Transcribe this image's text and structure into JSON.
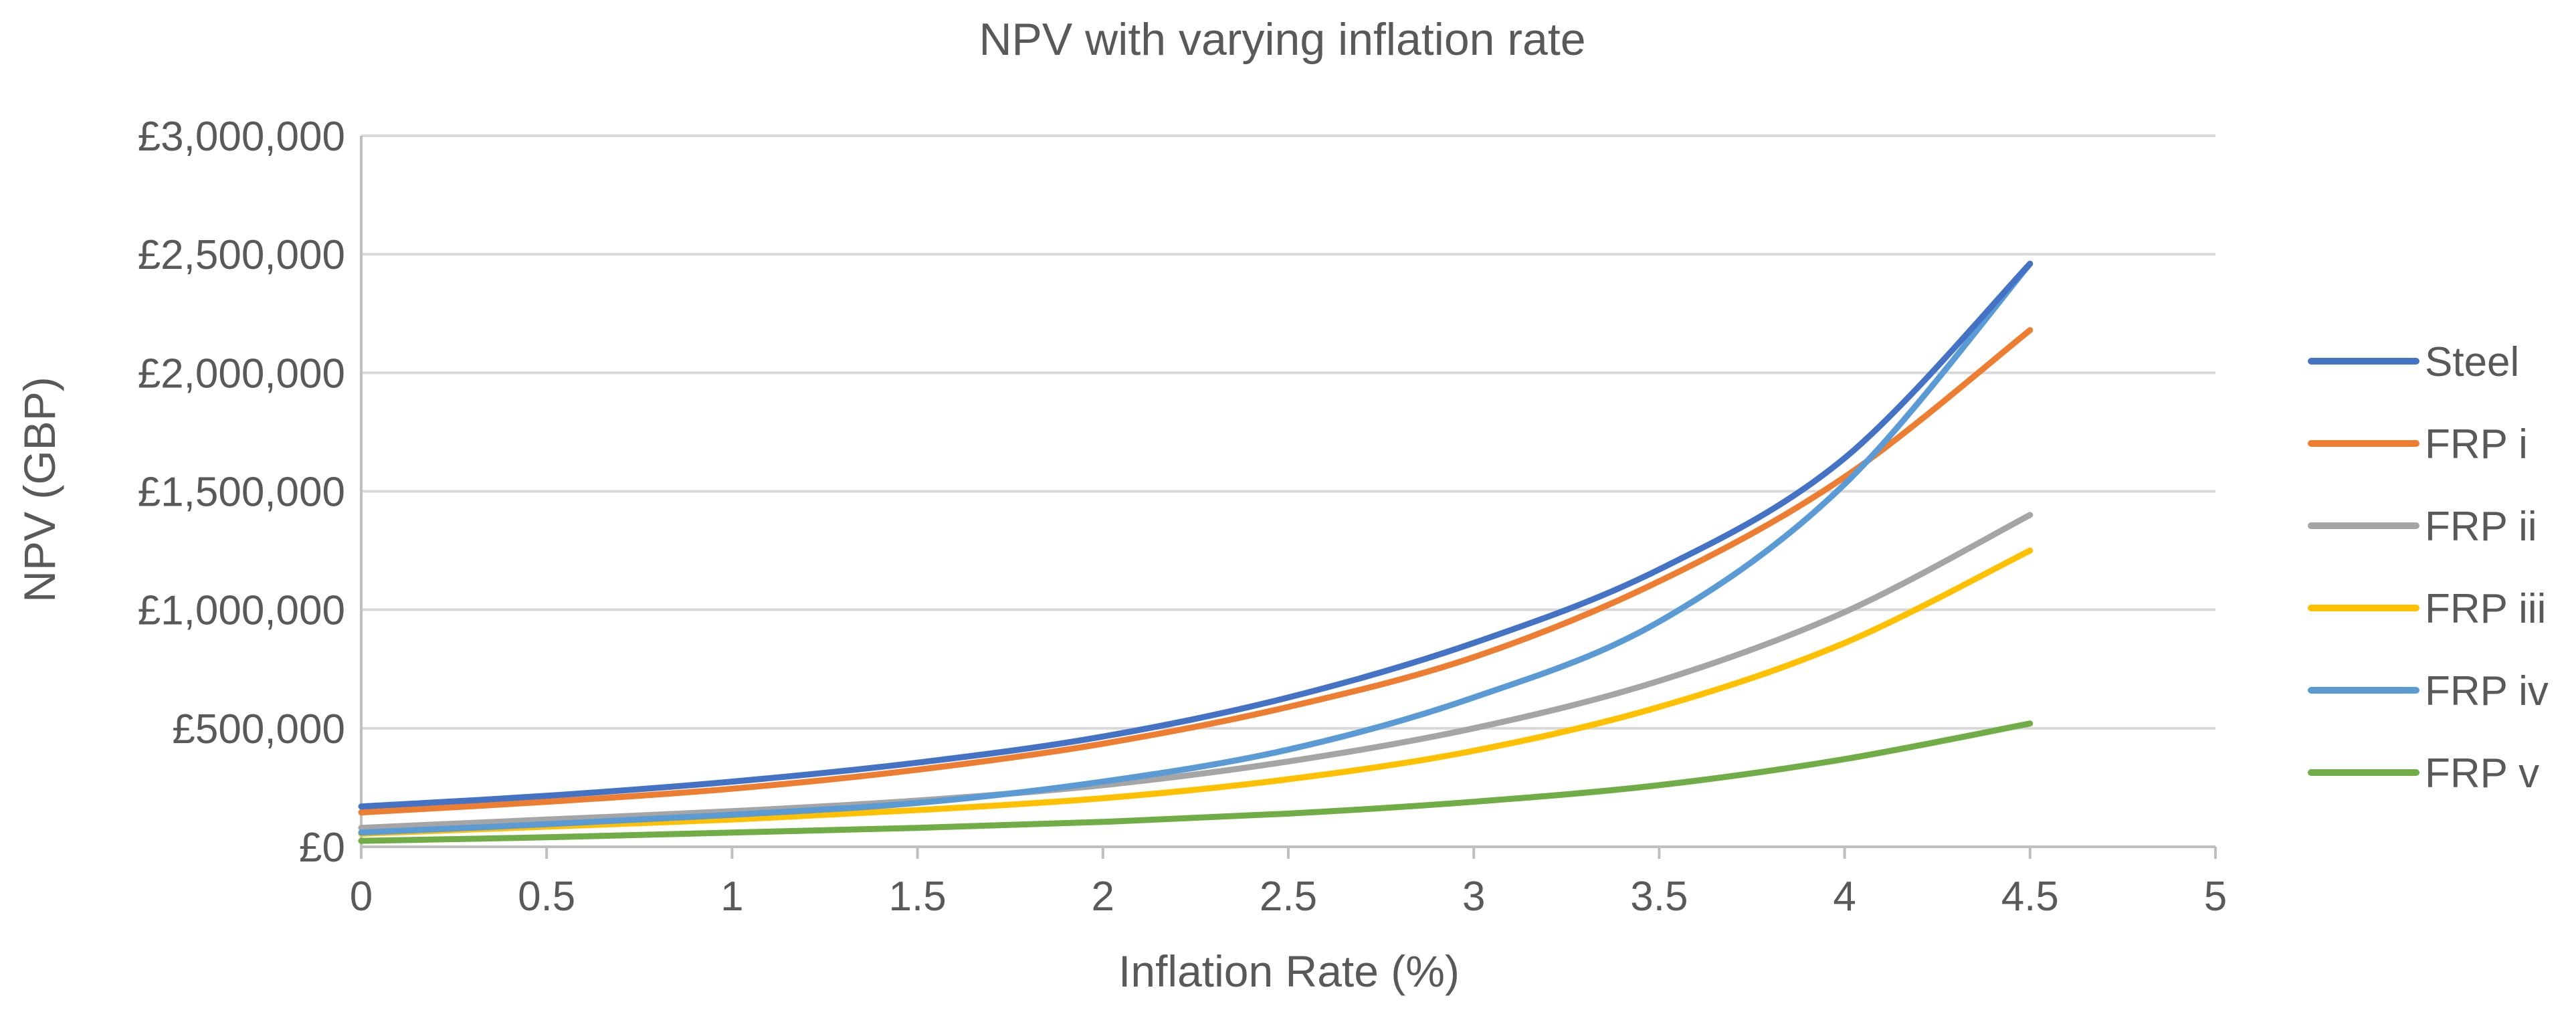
{
  "chart_data": {
    "type": "line",
    "title": "NPV with varying inflation rate",
    "xlabel": "Inflation Rate (%)",
    "ylabel": "NPV (GBP)",
    "xlim": [
      0,
      5
    ],
    "ylim": [
      0,
      3000000
    ],
    "x_ticks": [
      0,
      0.5,
      1,
      1.5,
      2,
      2.5,
      3,
      3.5,
      4,
      4.5,
      5
    ],
    "x_tick_labels": [
      "0",
      "0.5",
      "1",
      "1.5",
      "2",
      "2.5",
      "3",
      "3.5",
      "4",
      "4.5",
      "5"
    ],
    "y_ticks": [
      0,
      500000,
      1000000,
      1500000,
      2000000,
      2500000,
      3000000
    ],
    "y_tick_labels": [
      "£0",
      "£500,000",
      "£1,000,000",
      "£1,500,000",
      "£2,000,000",
      "£2,500,000",
      "£3,000,000"
    ],
    "grid": true,
    "legend_position": "right",
    "x": [
      0,
      0.5,
      1,
      1.5,
      2,
      2.5,
      3,
      3.5,
      4,
      4.5
    ],
    "series": [
      {
        "name": "Steel",
        "color": "#4472C4",
        "values": [
          170000,
          215000,
          275000,
          355000,
          465000,
          630000,
          860000,
          1170000,
          1640000,
          2460000
        ]
      },
      {
        "name": "FRP i",
        "color": "#ED7D31",
        "values": [
          145000,
          190000,
          245000,
          325000,
          435000,
          590000,
          800000,
          1120000,
          1560000,
          2180000
        ]
      },
      {
        "name": "FRP ii",
        "color": "#A5A5A5",
        "values": [
          80000,
          115000,
          150000,
          195000,
          260000,
          360000,
          500000,
          700000,
          990000,
          1400000
        ]
      },
      {
        "name": "FRP iii",
        "color": "#FFC000",
        "values": [
          55000,
          85000,
          115000,
          155000,
          205000,
          285000,
          405000,
          590000,
          860000,
          1250000
        ]
      },
      {
        "name": "FRP iv",
        "color": "#5B9BD5",
        "values": [
          60000,
          95000,
          135000,
          185000,
          275000,
          410000,
          630000,
          950000,
          1530000,
          2460000
        ]
      },
      {
        "name": "FRP v",
        "color": "#70AD47",
        "values": [
          25000,
          40000,
          60000,
          80000,
          105000,
          140000,
          190000,
          260000,
          370000,
          520000
        ]
      }
    ]
  }
}
